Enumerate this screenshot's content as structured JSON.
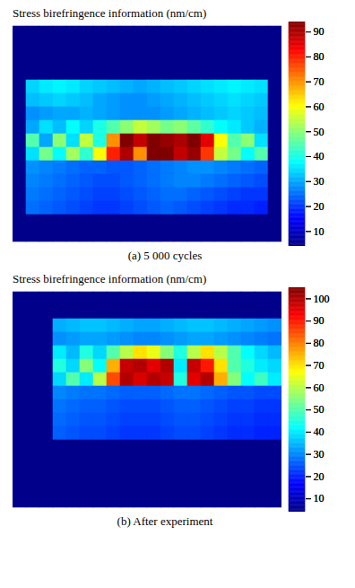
{
  "chart_data": [
    {
      "type": "heatmap",
      "title": "Stress birefringence information (nm/cm)",
      "caption": "(a) 5 000 cycles",
      "color": "jet",
      "tick_labels": false,
      "cells": [
        [
          5,
          5,
          5,
          5,
          5,
          5,
          5,
          5,
          5,
          5,
          5,
          5,
          5,
          5,
          5,
          5,
          5,
          5,
          5,
          5
        ],
        [
          5,
          5,
          5,
          5,
          5,
          5,
          5,
          5,
          5,
          5,
          5,
          5,
          5,
          5,
          5,
          5,
          5,
          5,
          5,
          5
        ],
        [
          5,
          5,
          5,
          5,
          5,
          5,
          5,
          5,
          5,
          5,
          5,
          5,
          5,
          5,
          5,
          5,
          5,
          5,
          5,
          5
        ],
        [
          5,
          5,
          5,
          5,
          5,
          5,
          5,
          5,
          5,
          5,
          5,
          5,
          5,
          5,
          5,
          5,
          5,
          5,
          5,
          5
        ],
        [
          5,
          34,
          36,
          37,
          36,
          34,
          33,
          32,
          31,
          30,
          31,
          32,
          33,
          34,
          35,
          36,
          37,
          36,
          35,
          5
        ],
        [
          5,
          32,
          33,
          34,
          33,
          32,
          30,
          29,
          28,
          28,
          29,
          30,
          31,
          32,
          33,
          34,
          35,
          34,
          33,
          5
        ],
        [
          5,
          28,
          29,
          30,
          30,
          31,
          30,
          29,
          28,
          28,
          28,
          29,
          30,
          31,
          32,
          33,
          34,
          33,
          32,
          5
        ],
        [
          5,
          30,
          35,
          32,
          38,
          34,
          40,
          45,
          50,
          55,
          52,
          48,
          50,
          46,
          42,
          38,
          36,
          33,
          31,
          5
        ],
        [
          5,
          45,
          30,
          50,
          35,
          55,
          40,
          70,
          95,
          88,
          96,
          92,
          90,
          94,
          85,
          60,
          45,
          50,
          35,
          5
        ],
        [
          5,
          35,
          48,
          38,
          52,
          42,
          60,
          80,
          90,
          70,
          95,
          96,
          88,
          92,
          78,
          55,
          48,
          38,
          45,
          5
        ],
        [
          5,
          28,
          27,
          26,
          25,
          24,
          24,
          23,
          23,
          24,
          25,
          26,
          27,
          28,
          28,
          27,
          26,
          25,
          24,
          5
        ],
        [
          5,
          27,
          26,
          25,
          24,
          23,
          22,
          22,
          23,
          24,
          25,
          26,
          27,
          27,
          26,
          25,
          24,
          23,
          22,
          5
        ],
        [
          5,
          26,
          25,
          24,
          23,
          22,
          21,
          21,
          22,
          23,
          24,
          25,
          25,
          24,
          23,
          22,
          21,
          20,
          20,
          5
        ],
        [
          5,
          25,
          24,
          23,
          22,
          21,
          20,
          20,
          21,
          22,
          23,
          24,
          23,
          22,
          21,
          20,
          19,
          19,
          18,
          5
        ],
        [
          5,
          5,
          5,
          5,
          5,
          5,
          5,
          5,
          5,
          5,
          5,
          5,
          5,
          5,
          5,
          5,
          5,
          5,
          5,
          5
        ],
        [
          5,
          5,
          5,
          5,
          5,
          5,
          5,
          5,
          5,
          5,
          5,
          5,
          5,
          5,
          5,
          5,
          5,
          5,
          5,
          5
        ]
      ],
      "colorbar_lim": [
        4,
        94
      ],
      "colorbar_ticks": [
        10,
        20,
        30,
        40,
        50,
        60,
        70,
        80,
        90
      ]
    },
    {
      "type": "heatmap",
      "title": "Stress birefringence information (nm/cm)",
      "caption": "(b) After experiment",
      "color": "jet",
      "tick_labels": false,
      "cells": [
        [
          5,
          5,
          5,
          5,
          5,
          5,
          5,
          5,
          5,
          5,
          5,
          5,
          5,
          5,
          5,
          5,
          5,
          5,
          5,
          5
        ],
        [
          5,
          5,
          5,
          5,
          5,
          5,
          5,
          5,
          5,
          5,
          5,
          5,
          5,
          5,
          5,
          5,
          5,
          5,
          5,
          5
        ],
        [
          5,
          5,
          5,
          34,
          35,
          36,
          36,
          35,
          34,
          33,
          33,
          34,
          35,
          36,
          36,
          35,
          34,
          33,
          32,
          31
        ],
        [
          5,
          5,
          5,
          31,
          32,
          33,
          33,
          32,
          31,
          30,
          30,
          31,
          32,
          33,
          33,
          32,
          31,
          30,
          29,
          28
        ],
        [
          5,
          5,
          5,
          40,
          35,
          45,
          38,
          50,
          60,
          70,
          65,
          55,
          45,
          60,
          70,
          60,
          50,
          42,
          38,
          35
        ],
        [
          5,
          5,
          5,
          45,
          38,
          55,
          42,
          75,
          98,
          100,
          95,
          100,
          40,
          98,
          90,
          70,
          50,
          45,
          40,
          38
        ],
        [
          5,
          5,
          5,
          38,
          50,
          40,
          60,
          85,
          100,
          96,
          100,
          98,
          45,
          95,
          100,
          75,
          55,
          42,
          48,
          40
        ],
        [
          5,
          5,
          5,
          30,
          29,
          28,
          28,
          27,
          26,
          26,
          26,
          27,
          28,
          28,
          27,
          26,
          25,
          25,
          24,
          24
        ],
        [
          5,
          5,
          5,
          28,
          27,
          26,
          26,
          25,
          24,
          24,
          24,
          25,
          26,
          26,
          25,
          24,
          23,
          23,
          22,
          22
        ],
        [
          5,
          5,
          5,
          27,
          26,
          25,
          25,
          24,
          23,
          23,
          23,
          24,
          25,
          25,
          24,
          23,
          22,
          22,
          21,
          21
        ],
        [
          5,
          5,
          5,
          26,
          25,
          24,
          24,
          23,
          22,
          22,
          22,
          23,
          24,
          24,
          23,
          22,
          21,
          21,
          20,
          20
        ],
        [
          5,
          5,
          5,
          5,
          5,
          5,
          5,
          5,
          5,
          5,
          5,
          5,
          5,
          5,
          5,
          5,
          5,
          5,
          5,
          5
        ],
        [
          5,
          5,
          5,
          5,
          5,
          5,
          5,
          5,
          5,
          5,
          5,
          5,
          5,
          5,
          5,
          5,
          5,
          5,
          5,
          5
        ],
        [
          5,
          5,
          5,
          5,
          5,
          5,
          5,
          5,
          5,
          5,
          5,
          5,
          5,
          5,
          5,
          5,
          5,
          5,
          5,
          5
        ],
        [
          5,
          5,
          5,
          5,
          5,
          5,
          5,
          5,
          5,
          5,
          5,
          5,
          5,
          5,
          5,
          5,
          5,
          5,
          5,
          5
        ],
        [
          5,
          5,
          5,
          5,
          5,
          5,
          5,
          5,
          5,
          5,
          5,
          5,
          5,
          5,
          5,
          5,
          5,
          5,
          5,
          5
        ]
      ],
      "colorbar_lim": [
        4,
        105
      ],
      "colorbar_ticks": [
        10,
        20,
        30,
        40,
        50,
        60,
        70,
        80,
        90,
        100
      ]
    }
  ]
}
